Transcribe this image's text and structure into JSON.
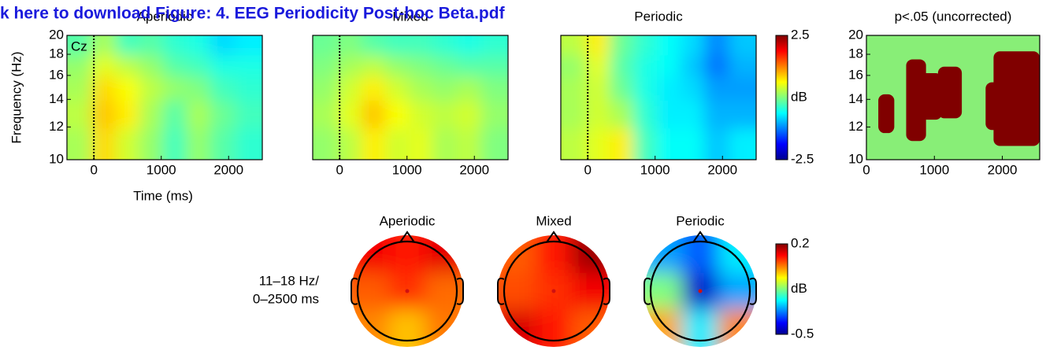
{
  "header": {
    "link": "k here to download Figure: 4. EEG Periodicity Post-hoc Beta.pdf"
  },
  "chart_data": [
    {
      "type": "heatmap",
      "title": "Aperiodic",
      "ylabel": "Frequency (Hz)",
      "xlabel": "Time (ms)",
      "annotation": "Cz",
      "x": [
        -200,
        150,
        500,
        850,
        1200,
        1550,
        1900,
        2300
      ],
      "y": [
        11,
        13,
        15,
        17,
        19
      ],
      "z": [
        [
          0.2,
          0.8,
          0.4,
          0.1,
          -0.3,
          0.1,
          -0.2,
          -0.4
        ],
        [
          0.3,
          0.9,
          0.7,
          0.2,
          -0.2,
          0.2,
          -0.1,
          -0.3
        ],
        [
          0.2,
          0.8,
          0.6,
          0.3,
          0.1,
          0,
          -0.3,
          -0.4
        ],
        [
          0.1,
          0.5,
          0.3,
          0.1,
          -0.2,
          -0.3,
          -0.5,
          -0.5
        ],
        [
          -0.2,
          0.2,
          -0.3,
          -0.2,
          -0.4,
          -0.5,
          -0.8,
          -0.7
        ]
      ],
      "xlim": [
        -400,
        2500
      ],
      "xticks": [
        0,
        1000,
        2000
      ],
      "ylim": [
        10,
        20
      ],
      "yticks": [
        10,
        12,
        14,
        16,
        18,
        20
      ],
      "log_y": true,
      "event_x": 0,
      "clim": [
        -2.5,
        2.5
      ],
      "colormap": "jet"
    },
    {
      "type": "heatmap",
      "title": "Mixed",
      "x": [
        -200,
        150,
        500,
        850,
        1200,
        1550,
        1900,
        2300
      ],
      "y": [
        11,
        13,
        15,
        17,
        19
      ],
      "z": [
        [
          0.1,
          0.3,
          0.7,
          0.4,
          0.5,
          0.2,
          0.3,
          0
        ],
        [
          0.2,
          0.5,
          0.9,
          0.6,
          0.4,
          0.3,
          0.4,
          0.1
        ],
        [
          0.1,
          0.4,
          0.7,
          0.4,
          0.2,
          0.1,
          0.2,
          0
        ],
        [
          0,
          0.2,
          0.3,
          0.1,
          0,
          -0.1,
          -0.2,
          -0.2
        ],
        [
          -0.1,
          0,
          -0.2,
          -0.3,
          -0.3,
          -0.4,
          -0.5,
          -0.4
        ]
      ],
      "xlim": [
        -400,
        2500
      ],
      "xticks": [
        0,
        1000,
        2000
      ],
      "ylim": [
        10,
        20
      ],
      "log_y": true,
      "event_x": 0,
      "clim": [
        -2.5,
        2.5
      ],
      "colormap": "jet"
    },
    {
      "type": "heatmap",
      "title": "Periodic",
      "x": [
        -200,
        150,
        500,
        850,
        1200,
        1550,
        1900,
        2300
      ],
      "y": [
        11,
        13,
        15,
        17,
        19
      ],
      "z": [
        [
          0.3,
          0.5,
          0.7,
          -0.3,
          -0.6,
          -0.6,
          -0.9,
          -0.7
        ],
        [
          0.2,
          0.4,
          0.2,
          -0.4,
          -0.7,
          -0.7,
          -1.0,
          -1.0
        ],
        [
          0.2,
          0.4,
          -0.1,
          -0.5,
          -0.7,
          -0.8,
          -1.1,
          -1.1
        ],
        [
          0.1,
          0.5,
          -0.2,
          -0.5,
          -0.6,
          -0.9,
          -1.3,
          -1.0
        ],
        [
          0.3,
          0.7,
          -0.1,
          -0.4,
          -0.6,
          -0.8,
          -1.2,
          -0.9
        ]
      ],
      "xlim": [
        -400,
        2500
      ],
      "xticks": [
        0,
        1000,
        2000
      ],
      "ylim": [
        10,
        20
      ],
      "log_y": true,
      "event_x": 0,
      "clim": [
        -2.5,
        2.5
      ],
      "colormap": "jet",
      "cticks": [
        2.5,
        -2.5
      ],
      "clabel": "dB"
    },
    {
      "type": "mask",
      "title": "p<.05 (uncorrected)",
      "color": "#800000",
      "background": "#88ee77",
      "clusters": [
        {
          "t": [
            175,
            410
          ],
          "f": [
            11.6,
            14.4
          ]
        },
        {
          "t": [
            585,
            877
          ],
          "f": [
            11.1,
            17.5
          ]
        },
        {
          "t": [
            760,
            1111
          ],
          "f": [
            12.5,
            16.2
          ]
        },
        {
          "t": [
            1053,
            1404
          ],
          "f": [
            12.6,
            16.8
          ]
        },
        {
          "t": [
            1754,
            1988
          ],
          "f": [
            11.8,
            15.4
          ]
        },
        {
          "t": [
            1871,
            2550
          ],
          "f": [
            10.8,
            18.3
          ]
        }
      ],
      "xlim": [
        0,
        2550
      ],
      "xticks": [
        0,
        1000,
        2000
      ],
      "ylim": [
        10,
        20
      ],
      "yticks": [
        10,
        12,
        14,
        16,
        18,
        20
      ],
      "log_y": true
    },
    {
      "type": "topomap",
      "label": [
        "11–18 Hz/",
        "0–2500 ms"
      ],
      "clim": [
        -0.5,
        0.2
      ],
      "cticks": [
        0.2,
        -0.5
      ],
      "clabel": "dB",
      "colormap": "jet",
      "maps": [
        {
          "title": "Aperiodic",
          "z": [
            [
              0.12,
              0.1,
              0.13
            ],
            [
              0.05,
              0.08,
              0.04
            ],
            [
              0.02,
              -0.02,
              0.03
            ]
          ]
        },
        {
          "title": "Mixed",
          "z": [
            [
              0.05,
              0.1,
              0.18
            ],
            [
              0.06,
              0.08,
              0.12
            ],
            [
              0.14,
              0.1,
              0.05
            ]
          ]
        },
        {
          "title": "Periodic",
          "z": [
            [
              -0.3,
              -0.35,
              -0.25
            ],
            [
              -0.15,
              -0.45,
              -0.3
            ],
            [
              0,
              -0.25,
              0.02
            ]
          ]
        }
      ]
    }
  ]
}
